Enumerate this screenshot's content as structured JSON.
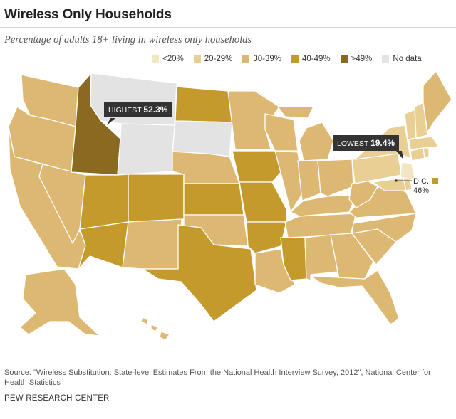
{
  "title": "Wireless Only Households",
  "subtitle": "Percentage of adults 18+ living in wireless only households",
  "legend": [
    {
      "label": "<20%",
      "color": "#f3e6c2"
    },
    {
      "label": "20-29%",
      "color": "#e9cf94"
    },
    {
      "label": "30-39%",
      "color": "#ddb873"
    },
    {
      "label": "40-49%",
      "color": "#c49a2d"
    },
    {
      "label": ">49%",
      "color": "#8a6a20"
    },
    {
      "label": "No data",
      "color": "#e3e3e3"
    }
  ],
  "highest": {
    "label": "HIGHEST",
    "value": "52.3%"
  },
  "lowest": {
    "label": "LOWEST",
    "value": "19.4%"
  },
  "dc": {
    "label": "D.C.",
    "value": "46%",
    "color": "#c49a2d"
  },
  "source": "Source: \"Wireless Substitution: State-level Estimates From the National Health Interview Survey, 2012\", National Center for Health Statistics",
  "brand": "PEW RESEARCH CENTER",
  "categories": {
    "WA": "30-39%",
    "OR": "30-39%",
    "CA": "30-39%",
    "NV": "30-39%",
    "ID": ">49%",
    "MT": "No data",
    "WY": "No data",
    "SD": "No data",
    "UT": "40-49%",
    "AZ": "40-49%",
    "CO": "40-49%",
    "NM": "30-39%",
    "ND": "40-49%",
    "NE": "30-39%",
    "KS": "40-49%",
    "OK": "30-39%",
    "TX": "40-49%",
    "MN": "30-39%",
    "IA": "40-49%",
    "MO": "40-49%",
    "AR": "40-49%",
    "LA": "30-39%",
    "WI": "30-39%",
    "IL": "30-39%",
    "MS": "40-49%",
    "AL": "30-39%",
    "TN": "30-39%",
    "KY": "30-39%",
    "IN": "30-39%",
    "OH": "30-39%",
    "MI": "30-39%",
    "GA": "30-39%",
    "FL": "30-39%",
    "SC": "30-39%",
    "NC": "30-39%",
    "VA": "30-39%",
    "WV": "30-39%",
    "PA": "20-29%",
    "NY": "20-29%",
    "NJ": "<20%",
    "CT": "20-29%",
    "RI": "20-29%",
    "MA": "20-29%",
    "VT": "20-29%",
    "NH": "20-29%",
    "ME": "30-39%",
    "MD": "20-29%",
    "DE": "20-29%",
    "AK": "30-39%",
    "HI": "30-39%"
  }
}
